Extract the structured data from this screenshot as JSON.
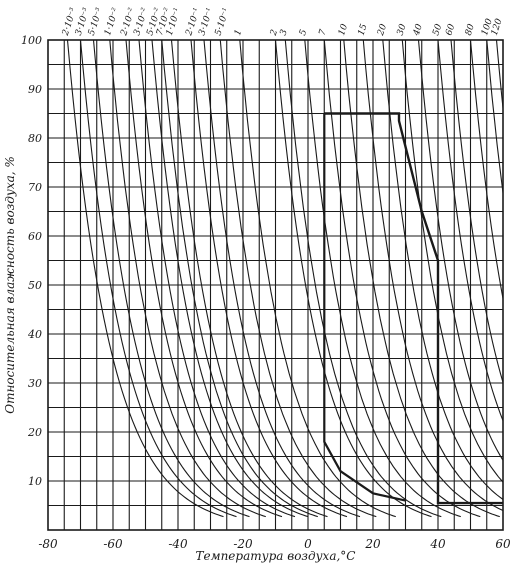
{
  "chart_data": {
    "type": "line",
    "title": "",
    "xlabel": "Температура воздуха,°C",
    "ylabel": "Относительная влажность воздуха, %",
    "xlim": [
      -80,
      60
    ],
    "ylim": [
      0,
      100
    ],
    "x_ticks": [
      "-80",
      "-60",
      "-40",
      "-20",
      "0",
      "20",
      "40",
      "60"
    ],
    "y_ticks": [
      "10",
      "20",
      "30",
      "40",
      "50",
      "60",
      "70",
      "80",
      "90",
      "100"
    ],
    "grid": true,
    "curve_family": "constant absolute humidity (vapour density) isolines",
    "curve_labels": [
      {
        "label": "2·10⁻³",
        "x_at_top": -74
      },
      {
        "label": "3·10⁻³",
        "x_at_top": -70
      },
      {
        "label": "5·10⁻³",
        "x_at_top": -66
      },
      {
        "label": "1·10⁻²",
        "x_at_top": -61
      },
      {
        "label": "2·10⁻²",
        "x_at_top": -56
      },
      {
        "label": "3·10⁻²",
        "x_at_top": -52
      },
      {
        "label": "5·10⁻²",
        "x_at_top": -48
      },
      {
        "label": "7·10⁻²",
        "x_at_top": -45
      },
      {
        "label": "1·10⁻¹",
        "x_at_top": -42
      },
      {
        "label": "2·10⁻¹",
        "x_at_top": -36
      },
      {
        "label": "3·10⁻¹",
        "x_at_top": -32
      },
      {
        "label": "5·10⁻¹",
        "x_at_top": -27
      },
      {
        "label": "1",
        "x_at_top": -21
      },
      {
        "label": "2",
        "x_at_top": -10
      },
      {
        "label": "3",
        "x_at_top": -7
      },
      {
        "label": "5",
        "x_at_top": -1
      },
      {
        "label": "7",
        "x_at_top": 5
      },
      {
        "label": "10",
        "x_at_top": 11
      },
      {
        "label": "15",
        "x_at_top": 17
      },
      {
        "label": "20",
        "x_at_top": 23
      },
      {
        "label": "30",
        "x_at_top": 29
      },
      {
        "label": "40",
        "x_at_top": 34
      },
      {
        "label": "50",
        "x_at_top": 40
      },
      {
        "label": "60",
        "x_at_top": 44
      },
      {
        "label": "80",
        "x_at_top": 50
      },
      {
        "label": "100",
        "x_at_top": 55
      },
      {
        "label": "120",
        "x_at_top": 58
      }
    ],
    "example_path": {
      "points": [
        [
          5,
          85
        ],
        [
          28,
          85
        ],
        [
          28,
          83.5
        ],
        [
          35,
          65
        ],
        [
          40,
          55
        ],
        [
          40,
          5.5
        ],
        [
          60,
          5.5
        ]
      ],
      "drop_line": [
        [
          5,
          85
        ],
        [
          5,
          18
        ],
        [
          10,
          12
        ],
        [
          20,
          7.5
        ],
        [
          30,
          6
        ]
      ]
    }
  }
}
